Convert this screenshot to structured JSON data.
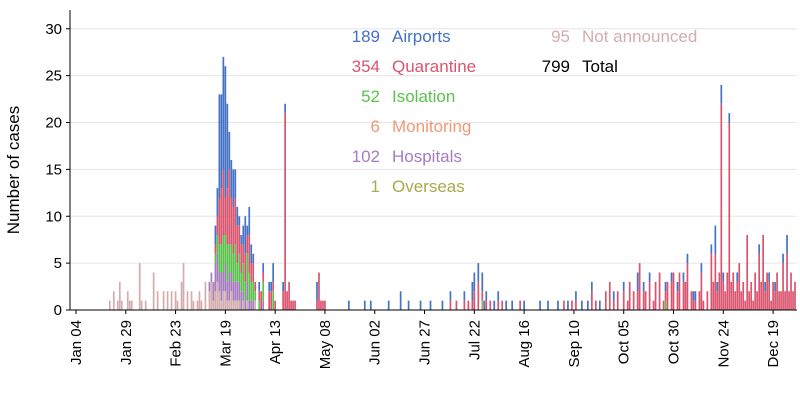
{
  "chart_data": {
    "type": "bar",
    "stacked": true,
    "title": "",
    "xlabel": "",
    "ylabel": "Number of cases",
    "ylim": [
      0,
      32
    ],
    "yticks": [
      0,
      5,
      10,
      15,
      20,
      25,
      30
    ],
    "xrange": [
      "2020-01-01",
      "2020-12-31"
    ],
    "grid": "horizontal",
    "xtick_labels": [
      "Jan 04",
      "Jan 29",
      "Feb 23",
      "Mar 19",
      "Apr 13",
      "May 08",
      "Jun 02",
      "Jun 27",
      "Jul 22",
      "Aug 16",
      "Sep 10",
      "Oct 05",
      "Oct 30",
      "Nov 24",
      "Dec 19"
    ],
    "xtick_dates": [
      "2020-01-04",
      "2020-01-29",
      "2020-02-23",
      "2020-03-19",
      "2020-04-13",
      "2020-05-08",
      "2020-06-02",
      "2020-06-27",
      "2020-07-22",
      "2020-08-16",
      "2020-09-10",
      "2020-10-05",
      "2020-10-30",
      "2020-11-24",
      "2020-12-19"
    ],
    "legend": [
      {
        "count": "189",
        "label": "Airports",
        "color": "#4472c4"
      },
      {
        "count": "354",
        "label": "Quarantine",
        "color": "#d9546e"
      },
      {
        "count": "52",
        "label": "Isolation",
        "color": "#5ac24c"
      },
      {
        "count": "6",
        "label": "Monitoring",
        "color": "#ee9a73"
      },
      {
        "count": "102",
        "label": "Hospitals",
        "color": "#a57cbe"
      },
      {
        "count": "1",
        "label": "Overseas",
        "color": "#a9a94e"
      },
      {
        "count": "95",
        "label": "Not announced",
        "color": "#d3adad"
      },
      {
        "count": "799",
        "label": "Total",
        "color": "#000000"
      }
    ],
    "series_order": [
      "Not announced",
      "Overseas",
      "Hospitals",
      "Monitoring",
      "Isolation",
      "Quarantine",
      "Airports"
    ],
    "bars": [
      {
        "date": "2020-01-21",
        "Not announced": 1
      },
      {
        "date": "2020-01-23",
        "Not announced": 2
      },
      {
        "date": "2020-01-25",
        "Not announced": 1
      },
      {
        "date": "2020-01-26",
        "Not announced": 3
      },
      {
        "date": "2020-01-27",
        "Not announced": 1
      },
      {
        "date": "2020-01-30",
        "Not announced": 2
      },
      {
        "date": "2020-01-31",
        "Not announced": 1
      },
      {
        "date": "2020-02-01",
        "Not announced": 1
      },
      {
        "date": "2020-02-05",
        "Not announced": 5
      },
      {
        "date": "2020-02-06",
        "Not announced": 1
      },
      {
        "date": "2020-02-08",
        "Not announced": 1
      },
      {
        "date": "2020-02-12",
        "Not announced": 4
      },
      {
        "date": "2020-02-14",
        "Not announced": 2
      },
      {
        "date": "2020-02-17",
        "Not announced": 2
      },
      {
        "date": "2020-02-19",
        "Not announced": 2
      },
      {
        "date": "2020-02-21",
        "Not announced": 2
      },
      {
        "date": "2020-02-23",
        "Not announced": 2
      },
      {
        "date": "2020-02-24",
        "Not announced": 1
      },
      {
        "date": "2020-02-26",
        "Not announced": 3
      },
      {
        "date": "2020-02-27",
        "Not announced": 5
      },
      {
        "date": "2020-02-29",
        "Not announced": 2
      },
      {
        "date": "2020-03-02",
        "Not announced": 2
      },
      {
        "date": "2020-03-03",
        "Not announced": 1
      },
      {
        "date": "2020-03-05",
        "Not announced": 1
      },
      {
        "date": "2020-03-06",
        "Not announced": 2
      },
      {
        "date": "2020-03-07",
        "Not announced": 1
      },
      {
        "date": "2020-03-09",
        "Not announced": 3
      },
      {
        "date": "2020-03-11",
        "Not announced": 2,
        "Hospitals": 1
      },
      {
        "date": "2020-03-12",
        "Not announced": 3,
        "Hospitals": 1
      },
      {
        "date": "2020-03-13",
        "Not announced": 1,
        "Hospitals": 2
      },
      {
        "date": "2020-03-14",
        "Not announced": 2,
        "Hospitals": 3,
        "Isolation": 1,
        "Quarantine": 1,
        "Airports": 2
      },
      {
        "date": "2020-03-15",
        "Not announced": 3,
        "Hospitals": 3,
        "Isolation": 2,
        "Quarantine": 2,
        "Airports": 3
      },
      {
        "date": "2020-03-16",
        "Not announced": 2,
        "Hospitals": 2,
        "Isolation": 3,
        "Quarantine": 5,
        "Airports": 11
      },
      {
        "date": "2020-03-17",
        "Not announced": 1,
        "Hospitals": 3,
        "Isolation": 3,
        "Quarantine": 6,
        "Airports": 10
      },
      {
        "date": "2020-03-18",
        "Not announced": 2,
        "Hospitals": 2,
        "Isolation": 4,
        "Quarantine": 7,
        "Airports": 12
      },
      {
        "date": "2020-03-19",
        "Not announced": 2,
        "Hospitals": 3,
        "Isolation": 3,
        "Quarantine": 4,
        "Airports": 14
      },
      {
        "date": "2020-03-20",
        "Not announced": 1,
        "Hospitals": 2,
        "Isolation": 4,
        "Quarantine": 6,
        "Airports": 9
      },
      {
        "date": "2020-03-21",
        "Not announced": 1,
        "Hospitals": 3,
        "Isolation": 3,
        "Quarantine": 8,
        "Airports": 4
      },
      {
        "date": "2020-03-22",
        "Not announced": 2,
        "Hospitals": 2,
        "Isolation": 3,
        "Quarantine": 5,
        "Airports": 4
      },
      {
        "date": "2020-03-23",
        "Not announced": 1,
        "Hospitals": 2,
        "Isolation": 3,
        "Quarantine": 5,
        "Airports": 4
      },
      {
        "date": "2020-03-24",
        "Not announced": 1,
        "Hospitals": 2,
        "Isolation": 4,
        "Quarantine": 5,
        "Airports": 3
      },
      {
        "date": "2020-03-25",
        "Not announced": 1,
        "Hospitals": 2,
        "Isolation": 2,
        "Quarantine": 4,
        "Airports": 2
      },
      {
        "date": "2020-03-26",
        "Not announced": 1,
        "Hospitals": 2,
        "Isolation": 3,
        "Quarantine": 3,
        "Airports": 1
      },
      {
        "date": "2020-03-27",
        "Hospitals": 2,
        "Isolation": 2,
        "Quarantine": 3,
        "Airports": 1
      },
      {
        "date": "2020-03-28",
        "Not announced": 1,
        "Hospitals": 1,
        "Isolation": 3,
        "Quarantine": 2,
        "Airports": 2
      },
      {
        "date": "2020-03-29",
        "Hospitals": 1,
        "Isolation": 2,
        "Quarantine": 3,
        "Airports": 4
      },
      {
        "date": "2020-03-30",
        "Not announced": 1,
        "Hospitals": 2,
        "Isolation": 3,
        "Quarantine": 2,
        "Airports": 1
      },
      {
        "date": "2020-03-31",
        "Hospitals": 1,
        "Isolation": 3,
        "Quarantine": 4,
        "Airports": 3
      },
      {
        "date": "2020-04-01",
        "Hospitals": 1,
        "Isolation": 2,
        "Quarantine": 2,
        "Airports": 2
      },
      {
        "date": "2020-04-02",
        "Hospitals": 1,
        "Isolation": 2,
        "Quarantine": 2,
        "Airports": 1
      },
      {
        "date": "2020-04-03",
        "Not announced": 1,
        "Isolation": 1,
        "Quarantine": 1
      },
      {
        "date": "2020-04-05",
        "Isolation": 1,
        "Quarantine": 1,
        "Airports": 1
      },
      {
        "date": "2020-04-06",
        "Quarantine": 2
      },
      {
        "date": "2020-04-07",
        "Hospitals": 1,
        "Isolation": 2,
        "Quarantine": 1,
        "Airports": 1
      },
      {
        "date": "2020-04-10",
        "Quarantine": 2,
        "Airports": 1
      },
      {
        "date": "2020-04-11",
        "Quarantine": 2,
        "Airports": 1
      },
      {
        "date": "2020-04-12",
        "Isolation": 2,
        "Quarantine": 1,
        "Airports": 2
      },
      {
        "date": "2020-04-13",
        "Quarantine": 1
      },
      {
        "date": "2020-04-17",
        "Quarantine": 2,
        "Airports": 1
      },
      {
        "date": "2020-04-18",
        "Quarantine": 21,
        "Airports": 1
      },
      {
        "date": "2020-04-19",
        "Quarantine": 2
      },
      {
        "date": "2020-04-20",
        "Quarantine": 3
      },
      {
        "date": "2020-04-21",
        "Quarantine": 1
      },
      {
        "date": "2020-04-22",
        "Quarantine": 1
      },
      {
        "date": "2020-04-23",
        "Quarantine": 1
      },
      {
        "date": "2020-05-04",
        "Quarantine": 1,
        "Airports": 2
      },
      {
        "date": "2020-05-05",
        "Quarantine": 4
      },
      {
        "date": "2020-05-06",
        "Quarantine": 1
      },
      {
        "date": "2020-05-07",
        "Quarantine": 1
      },
      {
        "date": "2020-05-08",
        "Quarantine": 1
      },
      {
        "date": "2020-05-20",
        "Airports": 1
      },
      {
        "date": "2020-05-28",
        "Airports": 1
      },
      {
        "date": "2020-05-31",
        "Airports": 1
      },
      {
        "date": "2020-06-09",
        "Airports": 1
      },
      {
        "date": "2020-06-15",
        "Airports": 2
      },
      {
        "date": "2020-06-19",
        "Airports": 1
      },
      {
        "date": "2020-06-25",
        "Airports": 1
      },
      {
        "date": "2020-06-30",
        "Airports": 1
      },
      {
        "date": "2020-07-06",
        "Airports": 1
      },
      {
        "date": "2020-07-10",
        "Quarantine": 1,
        "Airports": 1
      },
      {
        "date": "2020-07-13",
        "Quarantine": 1
      },
      {
        "date": "2020-07-17",
        "Quarantine": 1,
        "Airports": 1
      },
      {
        "date": "2020-07-19",
        "Quarantine": 1
      },
      {
        "date": "2020-07-21",
        "Quarantine": 1,
        "Airports": 2
      },
      {
        "date": "2020-07-22",
        "Quarantine": 2,
        "Airports": 2
      },
      {
        "date": "2020-07-24",
        "Quarantine": 3,
        "Airports": 2
      },
      {
        "date": "2020-07-26",
        "Overseas": 1,
        "Quarantine": 1,
        "Airports": 2
      },
      {
        "date": "2020-07-27",
        "Airports": 1
      },
      {
        "date": "2020-07-28",
        "Quarantine": 1,
        "Airports": 1
      },
      {
        "date": "2020-07-30",
        "Quarantine": 1
      },
      {
        "date": "2020-08-01",
        "Airports": 1
      },
      {
        "date": "2020-08-03",
        "Quarantine": 1,
        "Airports": 1
      },
      {
        "date": "2020-08-05",
        "Quarantine": 1
      },
      {
        "date": "2020-08-07",
        "Airports": 1
      },
      {
        "date": "2020-08-10",
        "Airports": 1
      },
      {
        "date": "2020-08-14",
        "Quarantine": 1
      },
      {
        "date": "2020-08-16",
        "Airports": 1
      },
      {
        "date": "2020-08-24",
        "Airports": 1
      },
      {
        "date": "2020-08-28",
        "Airports": 1
      },
      {
        "date": "2020-09-02",
        "Airports": 1
      },
      {
        "date": "2020-09-05",
        "Quarantine": 1
      },
      {
        "date": "2020-09-07",
        "Airports": 1
      },
      {
        "date": "2020-09-09",
        "Quarantine": 1
      },
      {
        "date": "2020-09-11",
        "Quarantine": 1,
        "Airports": 1
      },
      {
        "date": "2020-09-14",
        "Airports": 1
      },
      {
        "date": "2020-09-17",
        "Airports": 1
      },
      {
        "date": "2020-09-19",
        "Quarantine": 2,
        "Airports": 1
      },
      {
        "date": "2020-09-21",
        "Quarantine": 1
      },
      {
        "date": "2020-09-23",
        "Airports": 1
      },
      {
        "date": "2020-09-26",
        "Quarantine": 2
      },
      {
        "date": "2020-09-28",
        "Quarantine": 3
      },
      {
        "date": "2020-09-30",
        "Quarantine": 1,
        "Airports": 1
      },
      {
        "date": "2020-10-02",
        "Quarantine": 2
      },
      {
        "date": "2020-10-05",
        "Quarantine": 2,
        "Airports": 1
      },
      {
        "date": "2020-10-07",
        "Quarantine": 1
      },
      {
        "date": "2020-10-08",
        "Quarantine": 3
      },
      {
        "date": "2020-10-10",
        "Quarantine": 2
      },
      {
        "date": "2020-10-12",
        "Quarantine": 2,
        "Airports": 2
      },
      {
        "date": "2020-10-13",
        "Quarantine": 5
      },
      {
        "date": "2020-10-15",
        "Quarantine": 2,
        "Airports": 1
      },
      {
        "date": "2020-10-16",
        "Quarantine": 2
      },
      {
        "date": "2020-10-18",
        "Quarantine": 3,
        "Airports": 1
      },
      {
        "date": "2020-10-20",
        "Quarantine": 1
      },
      {
        "date": "2020-10-21",
        "Quarantine": 3
      },
      {
        "date": "2020-10-23",
        "Quarantine": 4
      },
      {
        "date": "2020-10-25",
        "Quarantine": 1
      },
      {
        "date": "2020-10-26",
        "Isolation": 1,
        "Quarantine": 1,
        "Airports": 1
      },
      {
        "date": "2020-10-27",
        "Quarantine": 3
      },
      {
        "date": "2020-10-29",
        "Quarantine": 3,
        "Airports": 1
      },
      {
        "date": "2020-10-30",
        "Quarantine": 4
      },
      {
        "date": "2020-11-01",
        "Quarantine": 2,
        "Airports": 1
      },
      {
        "date": "2020-11-02",
        "Quarantine": 4
      },
      {
        "date": "2020-11-04",
        "Quarantine": 3,
        "Airports": 1
      },
      {
        "date": "2020-11-05",
        "Quarantine": 3
      },
      {
        "date": "2020-11-06",
        "Quarantine": 5,
        "Airports": 1
      },
      {
        "date": "2020-11-08",
        "Quarantine": 2
      },
      {
        "date": "2020-11-09",
        "Quarantine": 1,
        "Airports": 1
      },
      {
        "date": "2020-11-10",
        "Quarantine": 1,
        "Airports": 1
      },
      {
        "date": "2020-11-12",
        "Quarantine": 2
      },
      {
        "date": "2020-11-13",
        "Quarantine": 4,
        "Airports": 1
      },
      {
        "date": "2020-11-14",
        "Quarantine": 1
      },
      {
        "date": "2020-11-16",
        "Quarantine": 2
      },
      {
        "date": "2020-11-18",
        "Quarantine": 6,
        "Airports": 1
      },
      {
        "date": "2020-11-19",
        "Quarantine": 3
      },
      {
        "date": "2020-11-20",
        "Quarantine": 6,
        "Airports": 3
      },
      {
        "date": "2020-11-21",
        "Quarantine": 2,
        "Airports": 1
      },
      {
        "date": "2020-11-22",
        "Quarantine": 4
      },
      {
        "date": "2020-11-23",
        "Quarantine": 22,
        "Airports": 2
      },
      {
        "date": "2020-11-24",
        "Quarantine": 3,
        "Airports": 1
      },
      {
        "date": "2020-11-25",
        "Quarantine": 2
      },
      {
        "date": "2020-11-26",
        "Quarantine": 4
      },
      {
        "date": "2020-11-27",
        "Quarantine": 20,
        "Airports": 1
      },
      {
        "date": "2020-11-28",
        "Quarantine": 3
      },
      {
        "date": "2020-11-29",
        "Quarantine": 4
      },
      {
        "date": "2020-11-30",
        "Quarantine": 2
      },
      {
        "date": "2020-12-01",
        "Quarantine": 3,
        "Airports": 1
      },
      {
        "date": "2020-12-02",
        "Quarantine": 5
      },
      {
        "date": "2020-12-03",
        "Quarantine": 2
      },
      {
        "date": "2020-12-04",
        "Quarantine": 3
      },
      {
        "date": "2020-12-05",
        "Quarantine": 1
      },
      {
        "date": "2020-12-06",
        "Quarantine": 8
      },
      {
        "date": "2020-12-07",
        "Quarantine": 2
      },
      {
        "date": "2020-12-08",
        "Quarantine": 3
      },
      {
        "date": "2020-12-09",
        "Quarantine": 1
      },
      {
        "date": "2020-12-10",
        "Quarantine": 4
      },
      {
        "date": "2020-12-11",
        "Quarantine": 2
      },
      {
        "date": "2020-12-12",
        "Quarantine": 6,
        "Airports": 1
      },
      {
        "date": "2020-12-13",
        "Quarantine": 3
      },
      {
        "date": "2020-12-14",
        "Quarantine": 8
      },
      {
        "date": "2020-12-15",
        "Quarantine": 2,
        "Airports": 1
      },
      {
        "date": "2020-12-16",
        "Quarantine": 4
      },
      {
        "date": "2020-12-17",
        "Quarantine": 3,
        "Airports": 1
      },
      {
        "date": "2020-12-18",
        "Quarantine": 1
      },
      {
        "date": "2020-12-19",
        "Quarantine": 3
      },
      {
        "date": "2020-12-20",
        "Quarantine": 2,
        "Airports": 1
      },
      {
        "date": "2020-12-21",
        "Quarantine": 4
      },
      {
        "date": "2020-12-22",
        "Quarantine": 2
      },
      {
        "date": "2020-12-23",
        "Quarantine": 2
      },
      {
        "date": "2020-12-24",
        "Quarantine": 5,
        "Airports": 1
      },
      {
        "date": "2020-12-25",
        "Quarantine": 2
      },
      {
        "date": "2020-12-26",
        "Quarantine": 6,
        "Airports": 2
      },
      {
        "date": "2020-12-27",
        "Quarantine": 2
      },
      {
        "date": "2020-12-28",
        "Quarantine": 4
      },
      {
        "date": "2020-12-29",
        "Quarantine": 2
      },
      {
        "date": "2020-12-30",
        "Quarantine": 3
      }
    ]
  }
}
